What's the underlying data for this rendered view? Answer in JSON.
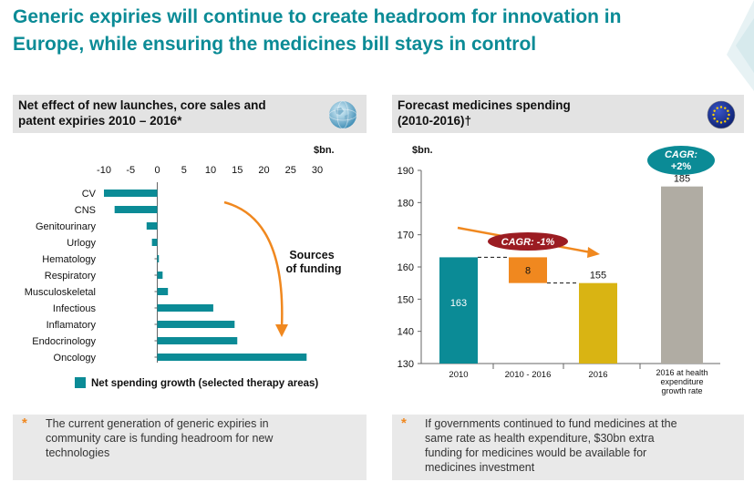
{
  "title_line1": "Generic expiries will continue to create headroom for innovation in",
  "title_line2": "Europe, while ensuring the medicines bill stays in control",
  "left_panel": {
    "header_line1": "Net effect of new launches, core sales and",
    "header_line2": "patent expiries 2010 – 2016*",
    "legend": "Net spending growth (selected therapy areas)",
    "annotation_line1": "Sources",
    "annotation_line2": "of funding",
    "note_marker": "*",
    "note_line1": "The current generation of generic expiries in",
    "note_line2": "community care is funding headroom for new",
    "note_line3": "technologies",
    "globe_icon": "world-globe-icon"
  },
  "right_panel": {
    "header_line1": "Forecast medicines spending",
    "header_line2": "(2010-2016)†",
    "note_marker": "*",
    "note_line1": "If governments continued to fund medicines at the",
    "note_line2": "same rate as health expenditure, $30bn extra",
    "note_line3": "funding for medicines would be available for",
    "note_line4": "medicines investment",
    "flag_icon": "eu-flag-icon"
  },
  "colors": {
    "teal": "#0b8b96",
    "orange": "#f0881f",
    "gold": "#d9b413",
    "grey": "#b0aca3",
    "darkred": "#9b1c22",
    "title": "#0b8b96"
  },
  "chart_data": [
    {
      "type": "bar",
      "orientation": "horizontal",
      "unit_label": "$bn.",
      "categories": [
        "CV",
        "CNS",
        "Genitourinary",
        "Urlogy",
        "Hematology",
        "Respiratory",
        "Musculoskeletal",
        "Infectious",
        "Inflamatory",
        "Endocrinology",
        "Oncology"
      ],
      "values": [
        -10,
        -8,
        -2,
        -1,
        0.3,
        1,
        2,
        10.5,
        14.5,
        15,
        28
      ],
      "xlim": [
        -10,
        30
      ],
      "xticks": [
        "-10",
        "-5",
        "0",
        "5",
        "10",
        "15",
        "20",
        "25",
        "30"
      ],
      "legend": "Net spending growth (selected therapy areas)"
    },
    {
      "type": "bar",
      "subtype": "waterfall",
      "unit_label": "$bn.",
      "ylim": [
        130,
        190
      ],
      "yticks": [
        "190",
        "180",
        "170",
        "160",
        "150",
        "140",
        "130"
      ],
      "categories": [
        "2010",
        "2010 - 2016",
        "2016",
        "2016 at health expenditure growth rate"
      ],
      "bars": [
        {
          "label": "2010",
          "bottom": 130,
          "top": 163,
          "value_label": "163",
          "color": "#0b8b96"
        },
        {
          "label": "2010 - 2016",
          "bottom": 155,
          "top": 163,
          "value_label": "8",
          "color": "#f0881f"
        },
        {
          "label": "2016",
          "bottom": 130,
          "top": 155,
          "value_label": "155",
          "color": "#d9b413"
        },
        {
          "label": "2016 at health expenditure growth rate",
          "bottom": 130,
          "top": 185,
          "value_label": "185",
          "color": "#b0aca3"
        }
      ],
      "cagr_down": "CAGR: -1%",
      "cagr_up_line1": "CAGR:",
      "cagr_up_line2": "+2%",
      "cat_label_line1": "2016 at health",
      "cat_label_line2": "expenditure",
      "cat_label_line3": "growth rate"
    }
  ]
}
